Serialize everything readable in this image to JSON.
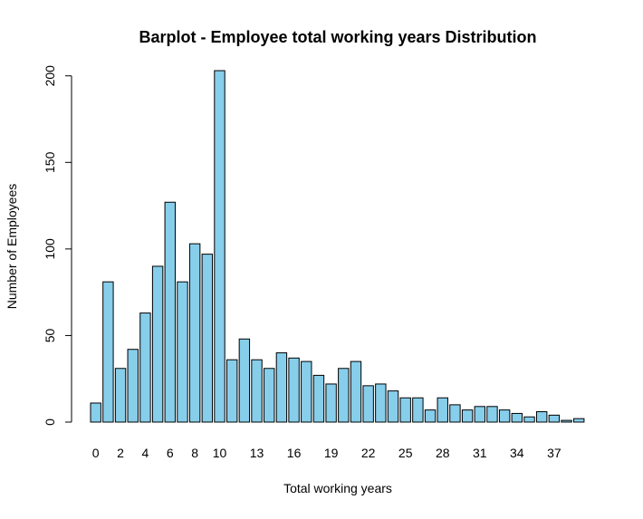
{
  "chart_data": {
    "type": "bar",
    "title": "Barplot - Employee total working years Distribution",
    "xlabel": "Total working years",
    "ylabel": "Number of Employees",
    "categories": [
      "0",
      "1",
      "2",
      "3",
      "4",
      "5",
      "6",
      "7",
      "8",
      "9",
      "10",
      "11",
      "12",
      "13",
      "14",
      "15",
      "16",
      "17",
      "18",
      "19",
      "20",
      "21",
      "22",
      "23",
      "24",
      "25",
      "26",
      "27",
      "28",
      "29",
      "30",
      "31",
      "32",
      "33",
      "34",
      "35",
      "36",
      "37",
      "38",
      "40"
    ],
    "values": [
      11,
      81,
      31,
      42,
      63,
      90,
      127,
      81,
      103,
      97,
      203,
      36,
      48,
      36,
      31,
      40,
      37,
      35,
      27,
      22,
      31,
      35,
      21,
      22,
      18,
      14,
      14,
      7,
      14,
      10,
      7,
      9,
      9,
      7,
      5,
      3,
      6,
      4,
      1,
      2
    ],
    "visible_tick_labels": [
      "0",
      "2",
      "4",
      "6",
      "8",
      "10",
      "13",
      "16",
      "19",
      "22",
      "25",
      "28",
      "31",
      "34",
      "37"
    ],
    "y_ticks": [
      0,
      50,
      100,
      150,
      200
    ],
    "ylim": [
      0,
      203
    ],
    "bar_color": "#87CEEB",
    "bar_border_color": "#000000",
    "grid": false,
    "legend": "none"
  }
}
